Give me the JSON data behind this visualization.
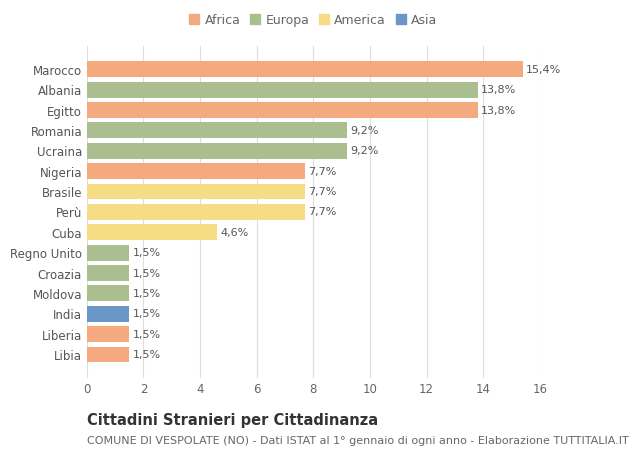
{
  "countries": [
    "Marocco",
    "Albania",
    "Egitto",
    "Romania",
    "Ucraina",
    "Nigeria",
    "Brasile",
    "Perù",
    "Cuba",
    "Regno Unito",
    "Croazia",
    "Moldova",
    "India",
    "Liberia",
    "Libia"
  ],
  "values": [
    15.4,
    13.8,
    13.8,
    9.2,
    9.2,
    7.7,
    7.7,
    7.7,
    4.6,
    1.5,
    1.5,
    1.5,
    1.5,
    1.5,
    1.5
  ],
  "labels": [
    "15,4%",
    "13,8%",
    "13,8%",
    "9,2%",
    "9,2%",
    "7,7%",
    "7,7%",
    "7,7%",
    "4,6%",
    "1,5%",
    "1,5%",
    "1,5%",
    "1,5%",
    "1,5%",
    "1,5%"
  ],
  "continent": [
    "Africa",
    "Europa",
    "Africa",
    "Europa",
    "Europa",
    "Africa",
    "America",
    "America",
    "America",
    "Europa",
    "Europa",
    "Europa",
    "Asia",
    "Africa",
    "Africa"
  ],
  "colors": {
    "Africa": "#F4A97F",
    "Europa": "#ABBE90",
    "America": "#F5DC85",
    "Asia": "#6B96C8"
  },
  "title": "Cittadini Stranieri per Cittadinanza",
  "subtitle": "COMUNE DI VESPOLATE (NO) - Dati ISTAT al 1° gennaio di ogni anno - Elaborazione TUTTITALIA.IT",
  "xlim": [
    0,
    16
  ],
  "xticks": [
    0,
    2,
    4,
    6,
    8,
    10,
    12,
    14,
    16
  ],
  "background_color": "#ffffff",
  "grid_color": "#dddddd",
  "bar_height": 0.78,
  "title_fontsize": 10.5,
  "subtitle_fontsize": 8,
  "label_fontsize": 8,
  "tick_fontsize": 8.5,
  "legend_fontsize": 9
}
